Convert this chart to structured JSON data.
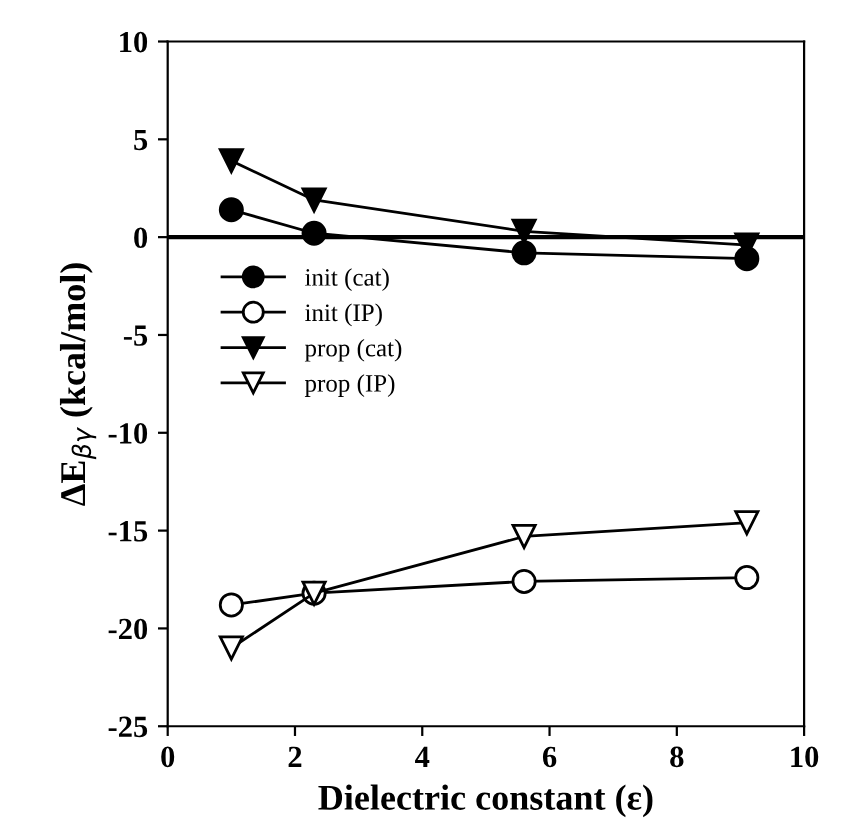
{
  "chart_data": {
    "type": "line",
    "xlabel": "Dielectric constant (ε)",
    "ylabel": "ΔE$_{βγ}$ (kcal/mol)",
    "xlim": [
      0,
      10
    ],
    "ylim": [
      -25,
      10
    ],
    "xticks": [
      0,
      2,
      4,
      6,
      8,
      10
    ],
    "yticks": [
      -25,
      -20,
      -15,
      -10,
      -5,
      0,
      5,
      10
    ],
    "x": [
      1,
      2.3,
      5.6,
      9.1
    ],
    "grid": false,
    "legend": "left",
    "line_style": "solid",
    "ref_lines": [
      {
        "axis": "y",
        "value": 0,
        "color": "#000000"
      }
    ],
    "series": [
      {
        "name": "init (cat)",
        "color": "#000000",
        "marker": "circle",
        "colors": [
          "#000000",
          "#000000",
          "#000000",
          "#000000"
        ],
        "values": [
          1.4,
          0.2,
          -0.8,
          -1.1
        ]
      },
      {
        "name": "init (IP)",
        "color": "#000000",
        "marker": "circle",
        "colors": [
          "#ffffff",
          "#ffffff",
          "#ffffff",
          "#ffffff"
        ],
        "values": [
          -18.8,
          -18.2,
          -17.6,
          -17.4
        ]
      },
      {
        "name": "prop (cat)",
        "color": "#000000",
        "marker": "triangle",
        "colors": [
          "#000000",
          "#000000",
          "#000000",
          "#000000"
        ],
        "values": [
          3.9,
          1.9,
          0.3,
          -0.4
        ]
      },
      {
        "name": "prop (IP)",
        "color": "#000000",
        "marker": "triangle",
        "colors": [
          "#ffffff",
          "#ffffff",
          "#ffffff",
          "#ffffff"
        ],
        "values": [
          -21.0,
          -18.2,
          -15.3,
          -14.6
        ]
      }
    ]
  }
}
